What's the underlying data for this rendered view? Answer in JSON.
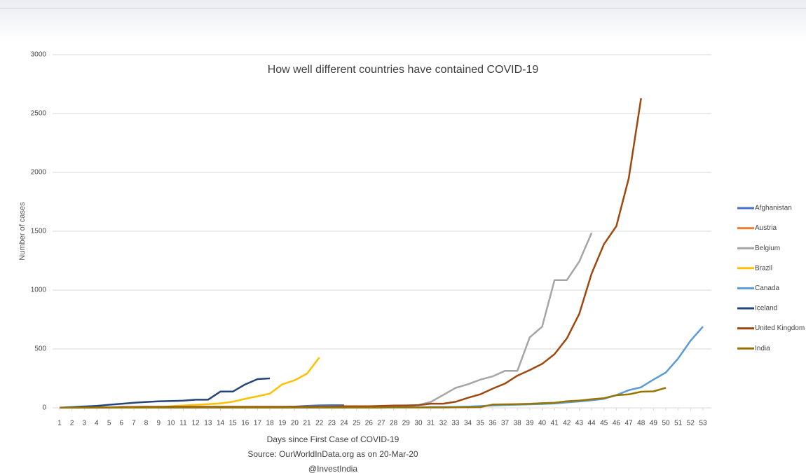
{
  "chart_data": {
    "type": "line",
    "title": "How well different countries have contained COVID-19",
    "y_label": "Number of cases",
    "x_label": "Days since First Case of COVID-19",
    "source": "Source: OurWorldInData.org as on 20-Mar-20",
    "credit": "@InvestIndia",
    "x": [
      1,
      2,
      3,
      4,
      5,
      6,
      7,
      8,
      9,
      10,
      11,
      12,
      13,
      14,
      15,
      16,
      17,
      18,
      19,
      20,
      21,
      22,
      23,
      24,
      25,
      26,
      27,
      28,
      29,
      30,
      31,
      32,
      33,
      34,
      35,
      36,
      37,
      38,
      39,
      40,
      41,
      42,
      43,
      44,
      45,
      46,
      47,
      48,
      49,
      50,
      51,
      52,
      53
    ],
    "xlim": [
      1,
      53
    ],
    "xticks": [
      1,
      2,
      3,
      4,
      5,
      6,
      7,
      8,
      9,
      10,
      11,
      12,
      13,
      14,
      15,
      16,
      17,
      18,
      19,
      20,
      21,
      22,
      23,
      24,
      25,
      26,
      27,
      28,
      29,
      30,
      31,
      32,
      33,
      34,
      35,
      36,
      37,
      38,
      39,
      40,
      41,
      42,
      43,
      44,
      45,
      46,
      47,
      48,
      49,
      50,
      51,
      52,
      53
    ],
    "ylim": [
      0,
      3000
    ],
    "yticks": [
      0,
      500,
      1000,
      1500,
      2000,
      2500,
      3000
    ],
    "grid": true,
    "legend": "right",
    "series": [
      {
        "name": "Afghanistan",
        "color": "#4472c4",
        "values": [
          1,
          1,
          1,
          1,
          1,
          1,
          1,
          1,
          1,
          1,
          1,
          1,
          1,
          1,
          1,
          1,
          5,
          5,
          7,
          10,
          16,
          21,
          22,
          22,
          null,
          null,
          null,
          null,
          null,
          null,
          null,
          null,
          null,
          null,
          null,
          null,
          null,
          null,
          null,
          null,
          null,
          null,
          null,
          null,
          null,
          null,
          null,
          null,
          null,
          null,
          null,
          null,
          null
        ]
      },
      {
        "name": "Austria",
        "color": "#ed7d31",
        "values": [
          2,
          2,
          3,
          3,
          3,
          5,
          5,
          5,
          5,
          5,
          5,
          5,
          5,
          5,
          5,
          5,
          5,
          5,
          5,
          5,
          5,
          5,
          5,
          5,
          null,
          null,
          null,
          null,
          null,
          null,
          null,
          null,
          null,
          null,
          null,
          null,
          null,
          null,
          null,
          null,
          null,
          null,
          null,
          null,
          null,
          null,
          null,
          null,
          null,
          null,
          null,
          null,
          null
        ]
      },
      {
        "name": "Belgium",
        "color": "#a5a5a5",
        "values": [
          1,
          1,
          1,
          1,
          1,
          1,
          1,
          1,
          1,
          1,
          1,
          1,
          1,
          1,
          1,
          1,
          1,
          1,
          1,
          1,
          1,
          1,
          1,
          1,
          1,
          1,
          2,
          8,
          13,
          23,
          50,
          109,
          169,
          200,
          239,
          267,
          314,
          314,
          599,
          689,
          1085,
          1085,
          1243,
          1486,
          null,
          null,
          null,
          null,
          null,
          null,
          null,
          null,
          null
        ]
      },
      {
        "name": "Brazil",
        "color": "#ffc000",
        "values": [
          1,
          1,
          1,
          2,
          2,
          2,
          2,
          3,
          3,
          13,
          20,
          25,
          31,
          38,
          52,
          77,
          98,
          121,
          200,
          234,
          291,
          428,
          null,
          null,
          null,
          null,
          null,
          null,
          null,
          null,
          null,
          null,
          null,
          null,
          null,
          null,
          null,
          null,
          null,
          null,
          null,
          null,
          null,
          null,
          null,
          null,
          null,
          null,
          null,
          null,
          null,
          null,
          null
        ]
      },
      {
        "name": "Canada",
        "color": "#5b9bd5",
        "values": [
          1,
          1,
          2,
          2,
          3,
          3,
          4,
          4,
          4,
          4,
          4,
          4,
          4,
          4,
          4,
          4,
          4,
          4,
          4,
          4,
          4,
          4,
          4,
          4,
          4,
          4,
          4,
          4,
          4,
          4,
          7,
          8,
          8,
          11,
          15,
          20,
          24,
          27,
          30,
          33,
          37,
          46,
          54,
          64,
          77,
          108,
          150,
          175,
          240,
          300,
          420,
          570,
          690
        ]
      },
      {
        "name": "Iceland",
        "color": "#264478",
        "values": [
          1,
          6,
          12,
          16,
          26,
          34,
          43,
          50,
          55,
          58,
          61,
          69,
          69,
          138,
          138,
          199,
          244,
          250,
          null,
          null,
          null,
          null,
          null,
          null,
          null,
          null,
          null,
          null,
          null,
          null,
          null,
          null,
          null,
          null,
          null,
          null,
          null,
          null,
          null,
          null,
          null,
          null,
          null,
          null,
          null,
          null,
          null,
          null,
          null,
          null,
          null,
          null,
          null
        ]
      },
      {
        "name": "United Kingdom",
        "color": "#9e480e",
        "values": [
          2,
          2,
          2,
          3,
          3,
          8,
          8,
          9,
          9,
          9,
          9,
          9,
          9,
          9,
          9,
          9,
          9,
          9,
          9,
          9,
          9,
          9,
          9,
          13,
          13,
          13,
          16,
          19,
          20,
          23,
          35,
          35,
          51,
          85,
          115,
          163,
          206,
          273,
          321,
          373,
          456,
          590,
          798,
          1140,
          1391,
          1543,
          1950,
          2630,
          null,
          null,
          null,
          null,
          null
        ]
      },
      {
        "name": "India",
        "color": "#997300",
        "values": [
          1,
          1,
          3,
          3,
          3,
          3,
          3,
          3,
          3,
          3,
          3,
          3,
          3,
          3,
          3,
          3,
          3,
          3,
          3,
          3,
          3,
          3,
          3,
          3,
          3,
          3,
          3,
          3,
          3,
          3,
          3,
          3,
          5,
          5,
          6,
          28,
          30,
          31,
          34,
          39,
          43,
          56,
          62,
          73,
          82,
          107,
          114,
          137,
          140,
          170,
          null,
          null,
          null
        ]
      }
    ]
  }
}
